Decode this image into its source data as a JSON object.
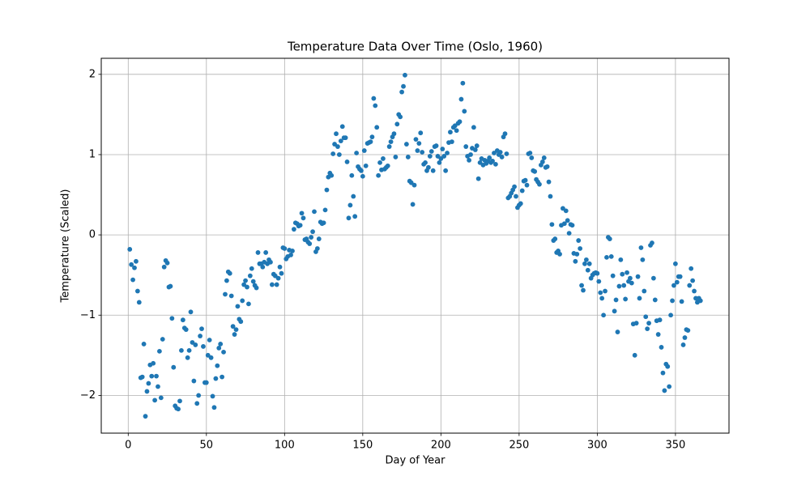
{
  "chart_data": {
    "type": "scatter",
    "title": "Temperature Data Over Time (Oslo, 1960)",
    "xlabel": "Day of Year",
    "ylabel": "Temperature (Scaled)",
    "color": "#1f77b4",
    "grid": true,
    "xlim": [
      -17.25,
      384.25
    ],
    "ylim": [
      -2.47,
      2.2
    ],
    "xticks": [
      0,
      50,
      100,
      150,
      200,
      250,
      300,
      350
    ],
    "yticks": [
      {
        "value": -2,
        "label": "−2"
      },
      {
        "value": -1,
        "label": "−1"
      },
      0,
      1,
      2
    ],
    "x": [
      1,
      2,
      3,
      4,
      5,
      6,
      7,
      8,
      9,
      10,
      11,
      12,
      13,
      14,
      15,
      16,
      17,
      18,
      19,
      20,
      21,
      22,
      23,
      24,
      25,
      26,
      27,
      28,
      29,
      30,
      31,
      32,
      33,
      34,
      35,
      36,
      37,
      38,
      39,
      40,
      41,
      42,
      43,
      44,
      45,
      46,
      47,
      48,
      49,
      50,
      51,
      52,
      53,
      54,
      55,
      56,
      57,
      58,
      59,
      60,
      61,
      62,
      63,
      64,
      65,
      66,
      67,
      68,
      69,
      70,
      71,
      72,
      73,
      74,
      75,
      76,
      77,
      78,
      79,
      80,
      81,
      82,
      83,
      84,
      85,
      86,
      87,
      88,
      89,
      90,
      91,
      92,
      93,
      94,
      95,
      96,
      97,
      98,
      99,
      100,
      101,
      102,
      103,
      104,
      105,
      106,
      107,
      108,
      109,
      110,
      111,
      112,
      113,
      114,
      115,
      116,
      117,
      118,
      119,
      120,
      121,
      122,
      123,
      124,
      125,
      126,
      127,
      128,
      129,
      130,
      131,
      132,
      133,
      134,
      135,
      136,
      137,
      138,
      139,
      140,
      141,
      142,
      143,
      144,
      145,
      146,
      147,
      148,
      149,
      150,
      151,
      152,
      153,
      154,
      155,
      156,
      157,
      158,
      159,
      160,
      161,
      162,
      163,
      164,
      165,
      166,
      167,
      168,
      169,
      170,
      171,
      172,
      173,
      174,
      175,
      176,
      177,
      178,
      179,
      180,
      181,
      182,
      183,
      184,
      185,
      186,
      187,
      188,
      189,
      190,
      191,
      192,
      193,
      194,
      195,
      196,
      197,
      198,
      199,
      200,
      201,
      202,
      203,
      204,
      205,
      206,
      207,
      208,
      209,
      210,
      211,
      212,
      213,
      214,
      215,
      216,
      217,
      218,
      219,
      220,
      221,
      222,
      223,
      224,
      225,
      226,
      227,
      228,
      229,
      230,
      231,
      232,
      233,
      234,
      235,
      236,
      237,
      238,
      239,
      240,
      241,
      242,
      243,
      244,
      245,
      246,
      247,
      248,
      249,
      250,
      251,
      252,
      253,
      254,
      255,
      256,
      257,
      258,
      259,
      260,
      261,
      262,
      263,
      264,
      265,
      266,
      267,
      268,
      269,
      270,
      271,
      272,
      273,
      274,
      275,
      276,
      277,
      278,
      279,
      280,
      281,
      282,
      283,
      284,
      285,
      286,
      287,
      288,
      289,
      290,
      291,
      292,
      293,
      294,
      295,
      296,
      297,
      298,
      299,
      300,
      301,
      302,
      303,
      304,
      305,
      306,
      307,
      308,
      309,
      310,
      311,
      312,
      313,
      314,
      315,
      316,
      317,
      318,
      319,
      320,
      321,
      322,
      323,
      324,
      325,
      326,
      327,
      328,
      329,
      330,
      331,
      332,
      333,
      334,
      335,
      336,
      337,
      338,
      339,
      340,
      341,
      342,
      343,
      344,
      345,
      346,
      347,
      348,
      349,
      350,
      351,
      352,
      353,
      354,
      355,
      356,
      357,
      358,
      359,
      360,
      361,
      362,
      363,
      364,
      365,
      366
    ],
    "values": [
      -0.18,
      -0.37,
      -0.56,
      -0.41,
      -0.33,
      -0.7,
      -0.84,
      -1.78,
      -1.77,
      -1.36,
      -2.26,
      -1.95,
      -1.85,
      -1.62,
      -1.76,
      -1.6,
      -2.06,
      -1.76,
      -1.89,
      -1.45,
      -2.03,
      -1.3,
      -0.4,
      -0.32,
      -0.35,
      -0.65,
      -0.64,
      -1.04,
      -1.65,
      -2.13,
      -2.16,
      -2.17,
      -2.07,
      -1.44,
      -1.06,
      -1.16,
      -1.18,
      -1.53,
      -1.44,
      -0.96,
      -1.34,
      -1.82,
      -1.37,
      -2.1,
      -2.0,
      -1.26,
      -1.17,
      -1.39,
      -1.84,
      -1.84,
      -1.5,
      -1.31,
      -1.53,
      -2.01,
      -2.15,
      -1.79,
      -1.63,
      -1.41,
      -1.36,
      -1.77,
      -1.46,
      -0.74,
      -0.57,
      -0.46,
      -0.48,
      -0.76,
      -1.14,
      -1.24,
      -1.18,
      -0.89,
      -1.05,
      -1.08,
      -0.82,
      -0.62,
      -0.57,
      -0.65,
      -0.86,
      -0.51,
      -0.42,
      -0.58,
      -0.63,
      -0.66,
      -0.22,
      -0.36,
      -0.36,
      -0.4,
      -0.34,
      -0.22,
      -0.36,
      -0.31,
      -0.34,
      -0.62,
      -0.49,
      -0.51,
      -0.62,
      -0.54,
      -0.4,
      -0.48,
      -0.16,
      -0.17,
      -0.3,
      -0.27,
      -0.19,
      -0.25,
      -0.2,
      0.07,
      0.15,
      0.14,
      0.11,
      0.12,
      0.27,
      0.21,
      -0.06,
      -0.05,
      -0.09,
      -0.11,
      -0.03,
      0.04,
      0.29,
      -0.21,
      -0.17,
      -0.05,
      0.16,
      0.14,
      0.15,
      0.31,
      0.56,
      0.72,
      0.77,
      0.74,
      1.01,
      1.13,
      1.26,
      1.1,
      1.0,
      1.17,
      1.35,
      1.21,
      1.21,
      0.91,
      0.21,
      0.37,
      0.74,
      0.48,
      0.23,
      1.02,
      0.85,
      0.82,
      0.8,
      0.73,
      1.05,
      0.86,
      1.14,
      1.15,
      1.16,
      1.22,
      1.7,
      1.61,
      1.34,
      0.74,
      0.9,
      0.81,
      0.95,
      0.82,
      0.84,
      0.86,
      1.1,
      1.16,
      1.22,
      1.26,
      0.97,
      1.38,
      1.5,
      1.47,
      1.78,
      1.85,
      1.99,
      1.13,
      0.97,
      0.67,
      0.65,
      0.38,
      0.62,
      1.19,
      1.05,
      1.14,
      1.27,
      1.03,
      0.88,
      0.9,
      0.8,
      0.84,
      0.98,
      1.04,
      0.8,
      1.1,
      1.11,
      0.98,
      0.9,
      0.95,
      1.07,
      0.98,
      0.8,
      1.02,
      1.15,
      1.28,
      1.16,
      1.34,
      1.36,
      1.3,
      1.39,
      1.41,
      1.69,
      1.89,
      1.54,
      1.1,
      0.98,
      0.93,
      1.0,
      1.08,
      1.34,
      1.06,
      1.11,
      0.7,
      0.9,
      0.95,
      0.87,
      0.93,
      0.89,
      0.92,
      0.96,
      0.9,
      0.92,
      1.02,
      0.88,
      1.05,
      1.0,
      1.03,
      0.97,
      1.22,
      1.26,
      1.01,
      0.46,
      0.48,
      0.52,
      0.56,
      0.6,
      0.48,
      0.34,
      0.37,
      0.39,
      0.55,
      0.67,
      0.68,
      0.62,
      1.01,
      1.02,
      0.96,
      0.8,
      0.79,
      0.69,
      0.66,
      0.63,
      0.87,
      0.91,
      0.96,
      0.84,
      0.85,
      0.66,
      0.48,
      0.13,
      -0.07,
      -0.05,
      -0.22,
      -0.2,
      -0.24,
      0.12,
      0.33,
      0.14,
      0.3,
      0.18,
      0.02,
      0.13,
      0.12,
      -0.23,
      -0.33,
      -0.24,
      -0.07,
      -0.17,
      -0.63,
      -0.69,
      -0.36,
      -0.31,
      -0.44,
      -0.36,
      -0.54,
      -0.5,
      -0.48,
      -0.47,
      -0.48,
      -0.58,
      -0.72,
      -0.79,
      -1.0,
      -0.7,
      -0.28,
      -0.03,
      -0.05,
      -0.27,
      -0.51,
      -0.95,
      -0.81,
      -1.21,
      -0.64,
      -0.31,
      -0.49,
      -0.63,
      -0.8,
      -0.47,
      -0.58,
      -0.54,
      -0.6,
      -1.11,
      -1.5,
      -1.1,
      -0.52,
      -0.79,
      -0.16,
      -0.31,
      -0.7,
      -1.02,
      -1.17,
      -1.1,
      -0.13,
      -0.1,
      -0.54,
      -0.81,
      -1.07,
      -1.24,
      -1.06,
      -1.4,
      -1.72,
      -1.94,
      -1.61,
      -1.64,
      -1.89,
      -1.0,
      -0.82,
      -0.63,
      -0.36,
      -0.59,
      -0.52,
      -0.52,
      -0.83,
      -1.37,
      -1.28,
      -1.18,
      -1.19,
      -0.63,
      -0.42,
      -0.57,
      -0.7,
      -0.79,
      -0.84,
      -0.79,
      -0.82
    ]
  }
}
